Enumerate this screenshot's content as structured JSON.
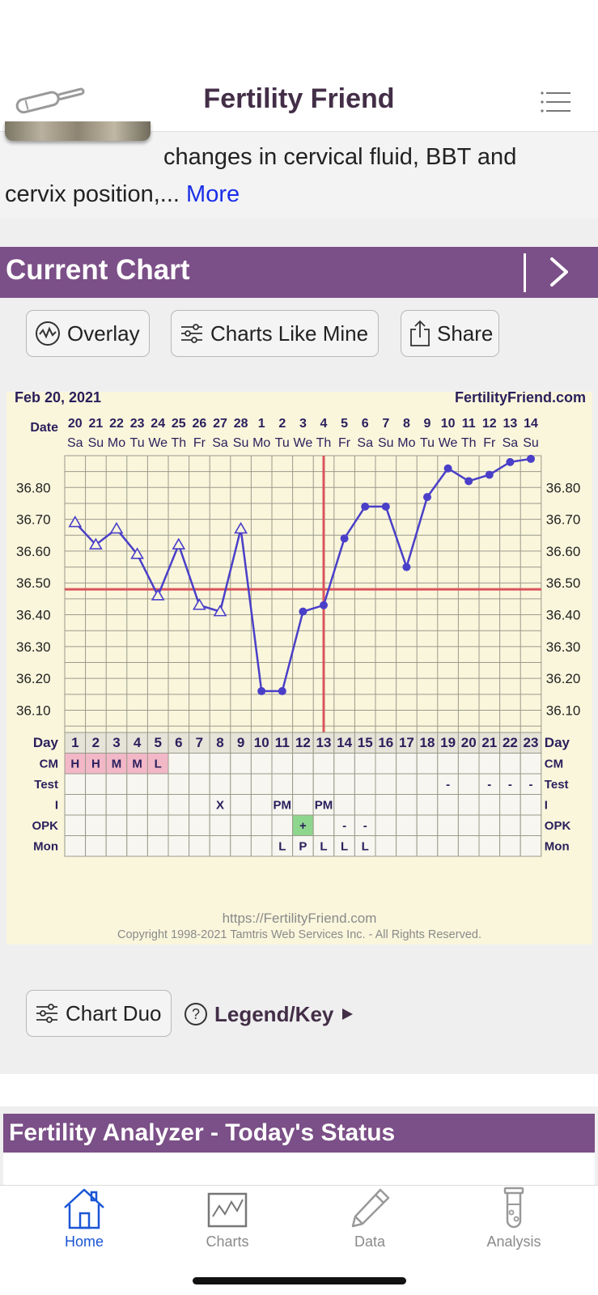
{
  "header": {
    "title": "Fertility Friend"
  },
  "intro": {
    "line1": "changes in cervical fluid, BBT and",
    "line2": "cervix position,... ",
    "more": "More"
  },
  "current_chart": {
    "title": "Current Chart",
    "buttons": {
      "overlay": "Overlay",
      "charts_like_mine": "Charts Like Mine",
      "share": "Share"
    }
  },
  "chart_data": {
    "type": "line",
    "title": "",
    "start_date": "Feb 20, 2021",
    "watermark": "FertilityFriend.com",
    "date_label": "Date",
    "dates": [
      "20",
      "21",
      "22",
      "23",
      "24",
      "25",
      "26",
      "27",
      "28",
      "1",
      "2",
      "3",
      "4",
      "5",
      "6",
      "7",
      "8",
      "9",
      "10",
      "11",
      "12",
      "13",
      "14"
    ],
    "weekdays": [
      "Sa",
      "Su",
      "Mo",
      "Tu",
      "We",
      "Th",
      "Fr",
      "Sa",
      "Su",
      "Mo",
      "Tu",
      "We",
      "Th",
      "Fr",
      "Sa",
      "Su",
      "Mo",
      "Tu",
      "We",
      "Th",
      "Fr",
      "Sa",
      "Su"
    ],
    "y_ticks": [
      "36.80",
      "36.70",
      "36.60",
      "36.50",
      "36.40",
      "36.30",
      "36.20",
      "36.10"
    ],
    "ylim": [
      36.03,
      36.9
    ],
    "series": [
      {
        "values": [
          36.69,
          36.62,
          36.67,
          36.59,
          36.46,
          36.62,
          36.43,
          36.41,
          36.67,
          36.16,
          36.16,
          36.41,
          36.43,
          36.64,
          36.74,
          36.74,
          36.55,
          36.77,
          36.86,
          36.82,
          36.84,
          36.88,
          36.89
        ],
        "markers": [
          "open-triangle",
          "open-triangle",
          "open-triangle",
          "open-triangle",
          "open-triangle",
          "open-triangle",
          "open-triangle",
          "open-triangle",
          "open-triangle",
          "dot",
          "dot",
          "dot",
          "dot",
          "dot",
          "dot",
          "dot",
          "dot",
          "dot",
          "dot",
          "dot",
          "dot",
          "dot",
          "dot"
        ]
      }
    ],
    "coverline": 36.48,
    "ovulation_day": 13,
    "colors": {
      "line": "#4a3fc8",
      "coverline": "#d9545c",
      "grid": "#9a9a8a",
      "cm_fill": "#f2b8c8",
      "opk_fill": "#8ed68e"
    },
    "rows": {
      "day_label": "Day",
      "days": [
        "1",
        "2",
        "3",
        "4",
        "5",
        "6",
        "7",
        "8",
        "9",
        "10",
        "11",
        "12",
        "13",
        "14",
        "15",
        "16",
        "17",
        "18",
        "19",
        "20",
        "21",
        "22",
        "23"
      ],
      "cm": {
        "label": "CM",
        "values": [
          "H",
          "H",
          "M",
          "M",
          "L",
          "",
          "",
          "",
          "",
          "",
          "",
          "",
          "",
          "",
          "",
          "",
          "",
          "",
          "",
          "",
          "",
          "",
          ""
        ]
      },
      "test": {
        "label": "Test",
        "values": [
          "",
          "",
          "",
          "",
          "",
          "",
          "",
          "",
          "",
          "",
          "",
          "",
          "",
          "",
          "",
          "",
          "",
          "",
          "-",
          "",
          "-",
          "-",
          "-"
        ]
      },
      "i": {
        "label": "I",
        "values": [
          "",
          "",
          "",
          "",
          "",
          "",
          "",
          "X",
          "",
          "",
          "PM",
          "",
          "PM",
          "",
          "",
          "",
          "",
          "",
          "",
          "",
          "",
          "",
          ""
        ]
      },
      "opk": {
        "label": "OPK",
        "values": [
          "",
          "",
          "",
          "",
          "",
          "",
          "",
          "",
          "",
          "",
          "",
          "+",
          "",
          "-",
          "-",
          "",
          "",
          "",
          "",
          "",
          "",
          "",
          ""
        ]
      },
      "mon": {
        "label": "Mon",
        "values": [
          "",
          "",
          "",
          "",
          "",
          "",
          "",
          "",
          "",
          "",
          "L",
          "P",
          "L",
          "L",
          "L",
          "",
          "",
          "",
          "",
          "",
          "",
          "",
          ""
        ]
      }
    }
  },
  "chart_footer": {
    "url": "https://FertilityFriend.com",
    "copyright": "Copyright 1998-2021 Tamtris Web Services Inc. - All Rights Reserved."
  },
  "chart_actions": {
    "chart_duo": "Chart Duo",
    "legend": "Legend/Key"
  },
  "analyzer": {
    "title": "Fertility Analyzer - Today's Status"
  },
  "tabbar": {
    "tabs": [
      {
        "label": "Home",
        "icon": "home-icon"
      },
      {
        "label": "Charts",
        "icon": "chart-icon"
      },
      {
        "label": "Data",
        "icon": "pencil-icon"
      },
      {
        "label": "Analysis",
        "icon": "test-tube-icon"
      }
    ]
  }
}
